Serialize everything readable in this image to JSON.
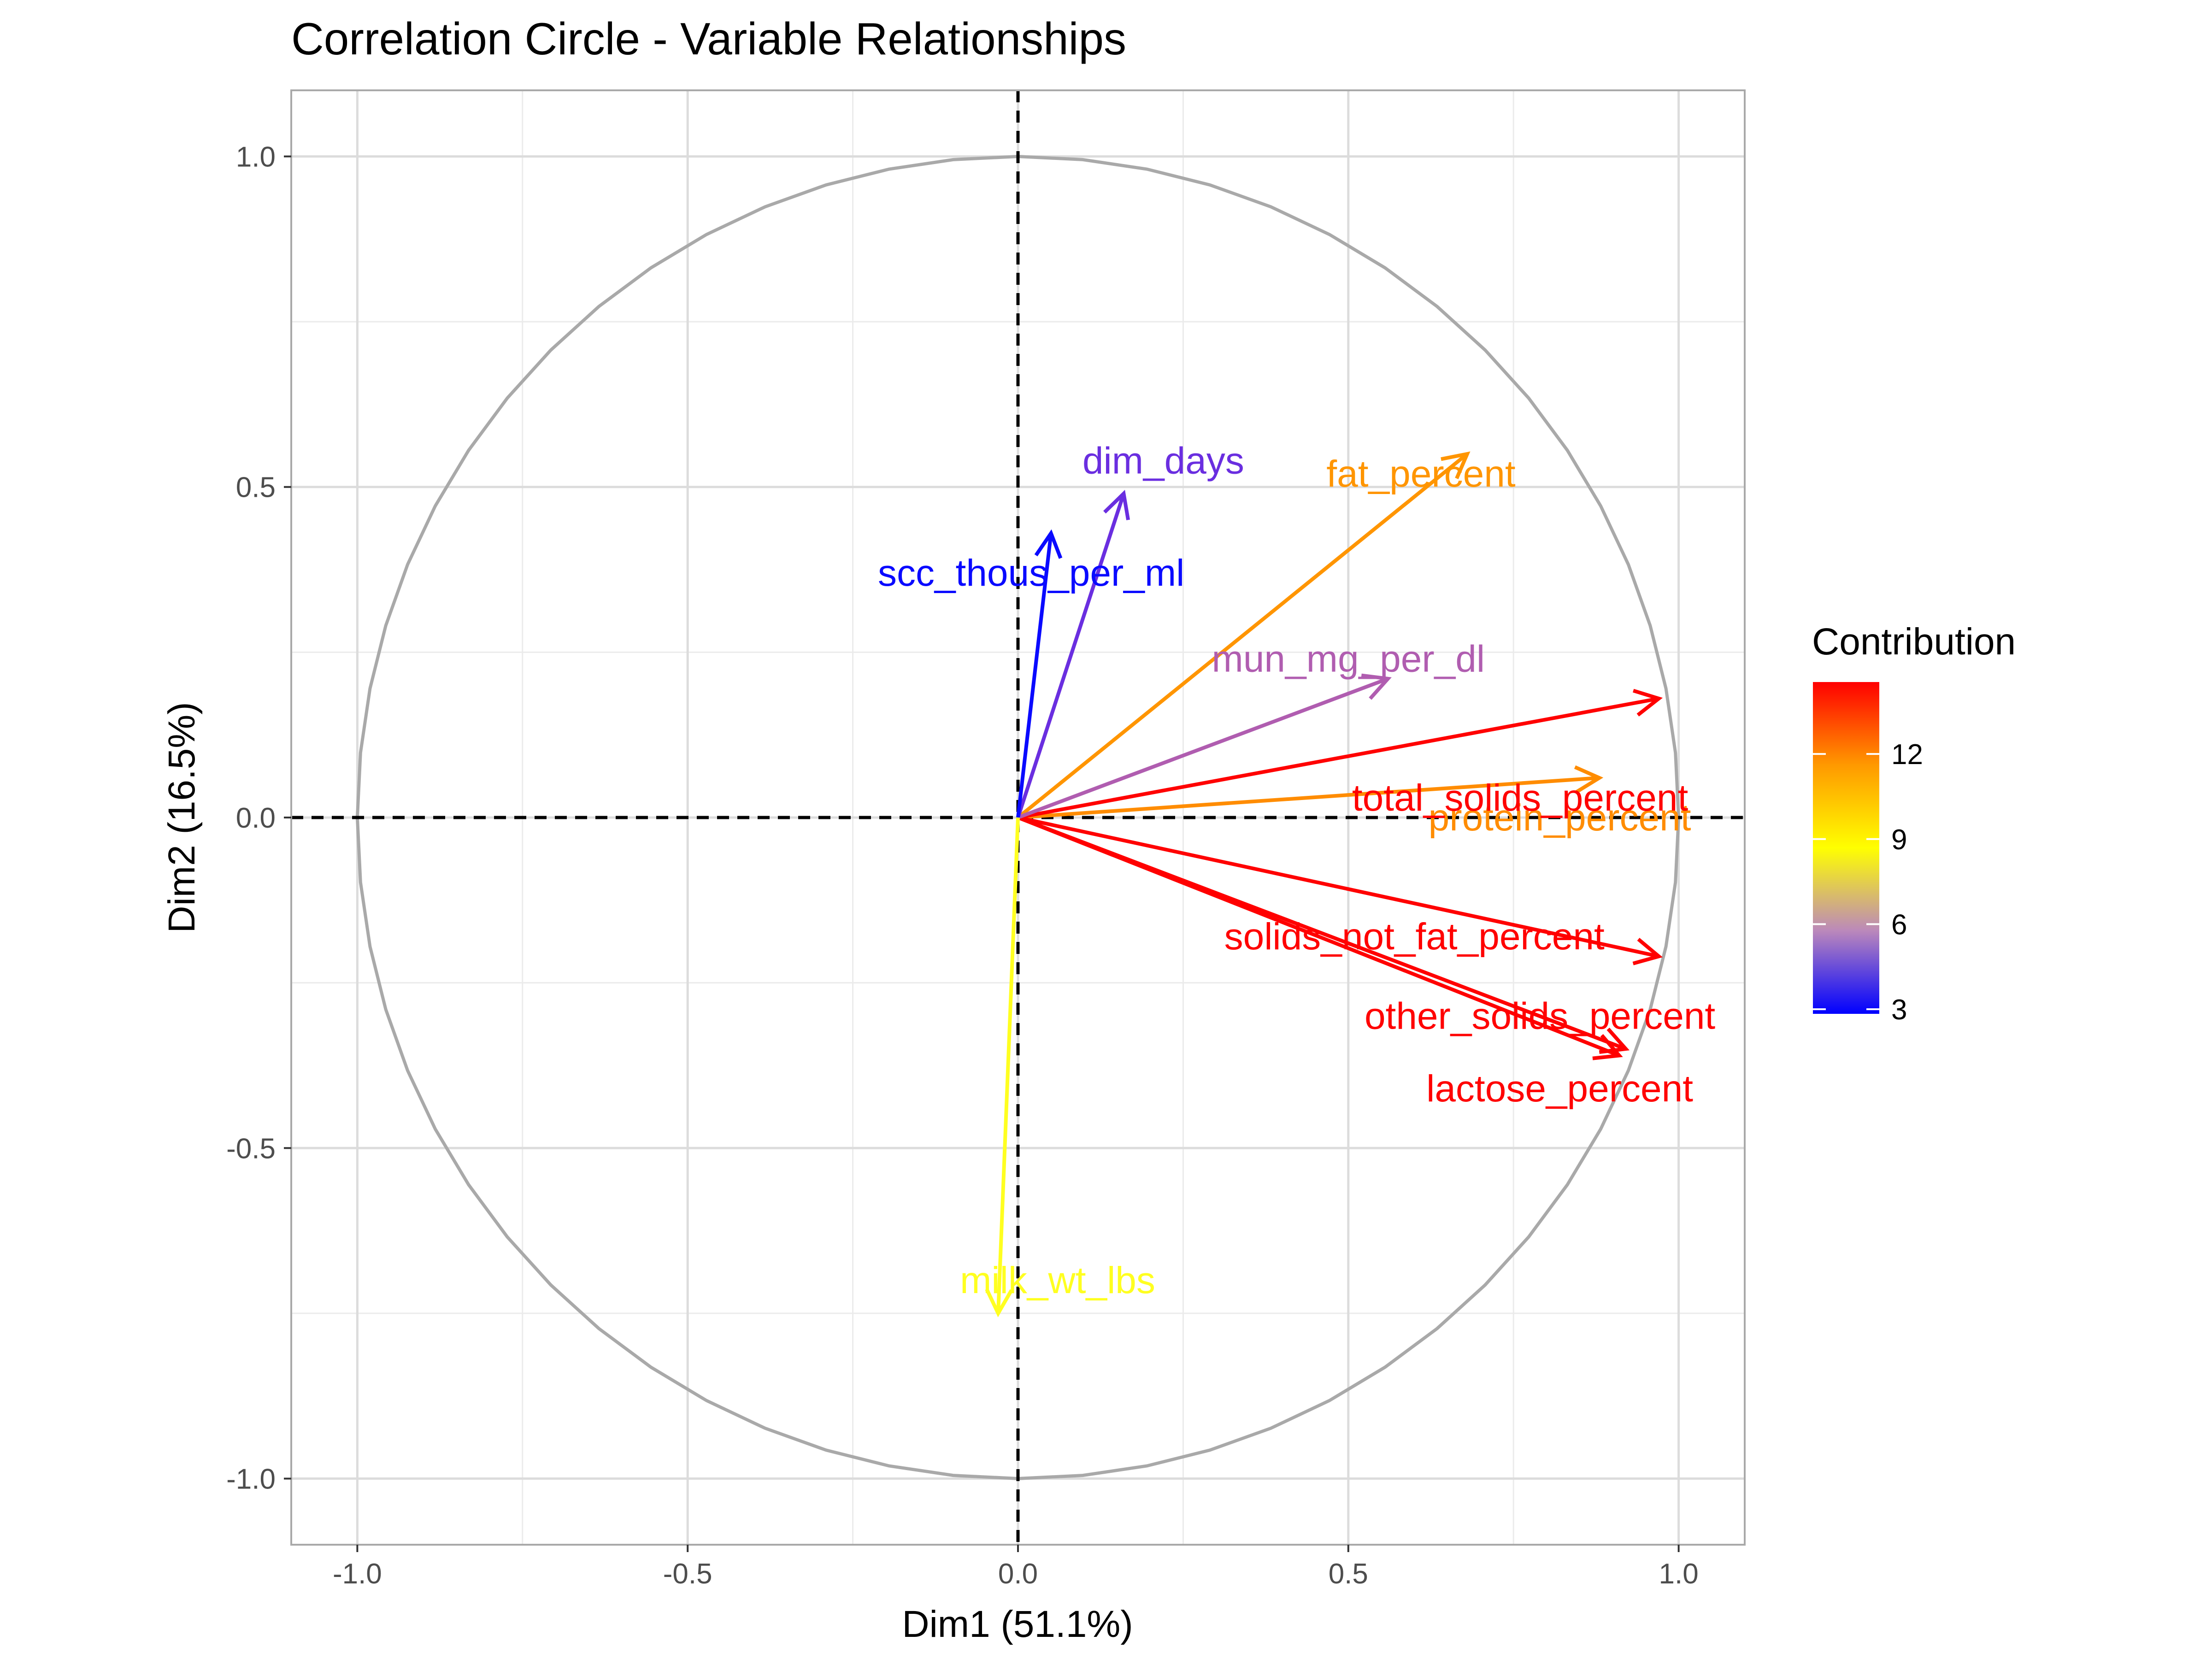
{
  "chart_data": {
    "type": "scatter",
    "subtype": "correlation-circle",
    "title": "Correlation Circle - Variable Relationships",
    "xlabel": "Dim1 (51.1%)",
    "ylabel": "Dim2 (16.5%)",
    "xlim": [
      -1.1,
      1.1
    ],
    "ylim": [
      -1.1,
      1.1
    ],
    "x_ticks": [
      -1.0,
      -0.5,
      0.0,
      0.5,
      1.0
    ],
    "x_tick_labels": [
      "-1.0",
      "-0.5",
      "0.0",
      "0.5",
      "1.0"
    ],
    "y_ticks": [
      -1.0,
      -0.5,
      0.0,
      0.5,
      1.0
    ],
    "y_tick_labels": [
      "-1.0",
      "-0.5",
      "0.0",
      "0.5",
      "1.0"
    ],
    "grid": true,
    "unit_circle": true,
    "reference_lines": [
      0,
      0
    ],
    "variables": [
      {
        "name": "fat_percent",
        "dim1": 0.68,
        "dim2": 0.55,
        "contribution": 11.0,
        "color": "#ff9500"
      },
      {
        "name": "protein_percent",
        "dim1": 0.88,
        "dim2": 0.06,
        "contribution": 11.8,
        "color": "#ff8c00"
      },
      {
        "name": "total_solids_percent",
        "dim1": 0.97,
        "dim2": 0.18,
        "contribution": 14.6,
        "color": "#ff0000"
      },
      {
        "name": "solids_not_fat_percent",
        "dim1": 0.97,
        "dim2": -0.21,
        "contribution": 14.3,
        "color": "#ff0000"
      },
      {
        "name": "other_solids_percent",
        "dim1": 0.92,
        "dim2": -0.35,
        "contribution": 14.0,
        "color": "#ff0000"
      },
      {
        "name": "lactose_percent",
        "dim1": 0.91,
        "dim2": -0.36,
        "contribution": 14.0,
        "color": "#ff0000"
      },
      {
        "name": "mun_mg_per_dl",
        "dim1": 0.56,
        "dim2": 0.21,
        "contribution": 5.3,
        "color": "#b05db0"
      },
      {
        "name": "dim_days",
        "dim1": 0.16,
        "dim2": 0.49,
        "contribution": 3.9,
        "color": "#6a2ee0"
      },
      {
        "name": "scc_thous_per_ml",
        "dim1": 0.05,
        "dim2": 0.43,
        "contribution": 3.0,
        "color": "#0a0aff"
      },
      {
        "name": "milk_wt_lbs",
        "dim1": -0.03,
        "dim2": -0.75,
        "contribution": 8.5,
        "color": "#ffff20"
      }
    ],
    "legend": {
      "title": "Contribution",
      "position": "right",
      "ticks": [
        3,
        6,
        9,
        12
      ],
      "tick_labels": [
        "3",
        "6",
        "9",
        "12"
      ],
      "range": [
        3,
        14.7
      ],
      "colors": [
        "#0000ff",
        "#bb88bb",
        "#ffff00",
        "#ff9900",
        "#ff0000"
      ]
    }
  }
}
